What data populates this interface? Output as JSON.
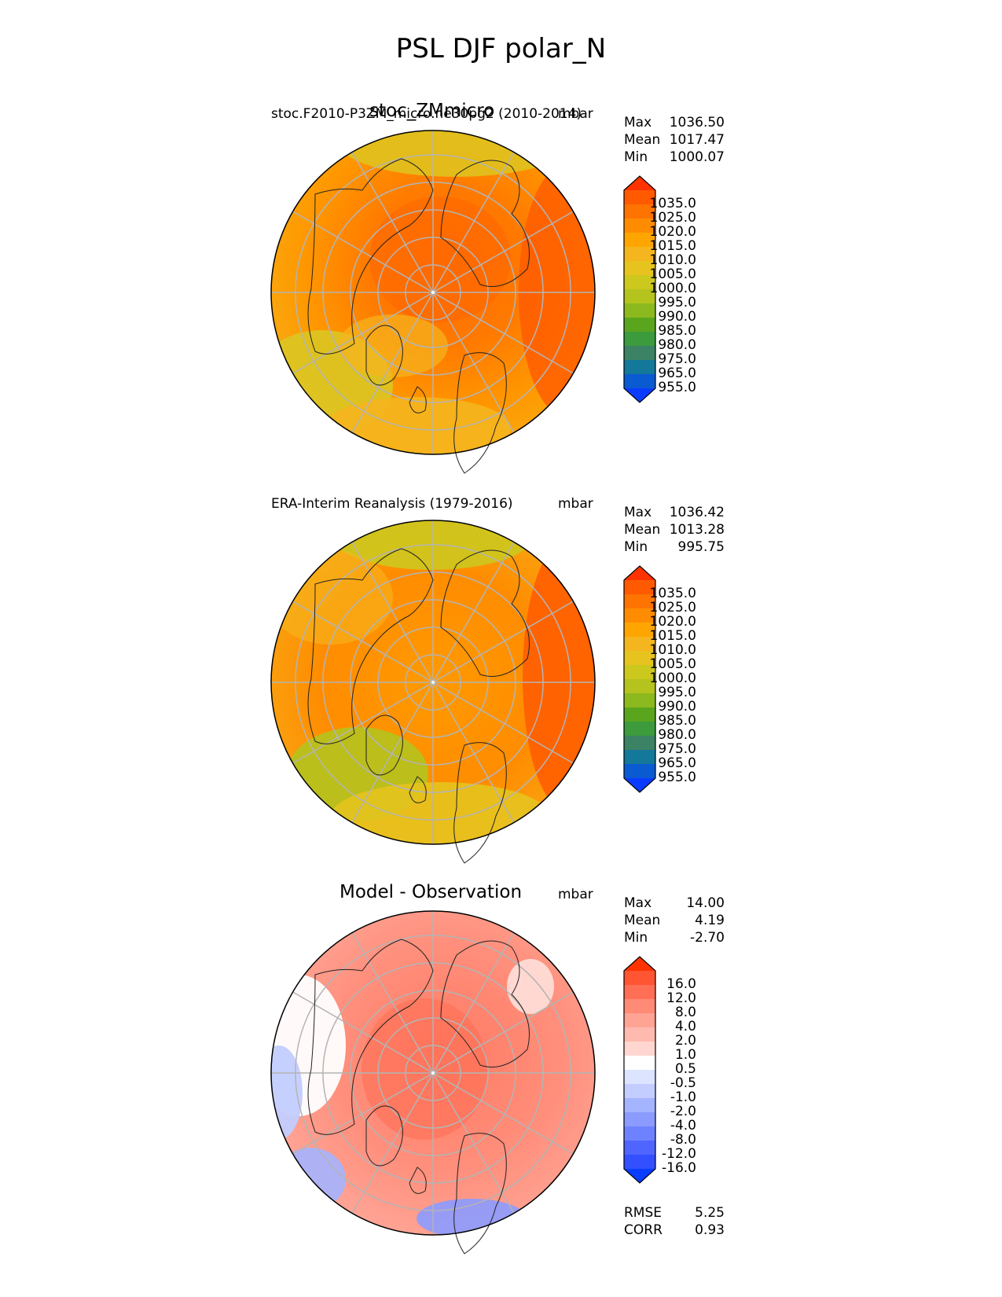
{
  "title": "PSL DJF polar_N",
  "panels": [
    {
      "id": "model",
      "title_left": "stoc.F2010-P3ZM_micro.ne30pg2 (2010-2014)",
      "title_center": "stoc_ZMmicro",
      "title_right": "mbar",
      "stats": [
        {
          "label": "Max",
          "value": "1036.50"
        },
        {
          "label": "Mean",
          "value": "1017.47"
        },
        {
          "label": "Min",
          "value": "1000.07"
        }
      ],
      "colorbar_labels": [
        "1035.0",
        "1025.0",
        "1020.0",
        "1015.0",
        "1010.0",
        "1005.0",
        "1000.0",
        "995.0",
        "990.0",
        "985.0",
        "980.0",
        "975.0",
        "965.0",
        "955.0"
      ],
      "colors": [
        "#ff3300",
        "#ff5a00",
        "#ff7300",
        "#ff8c00",
        "#ffa500",
        "#f5b51e",
        "#e6c31e",
        "#cdc81e",
        "#b4c31e",
        "#8cb91e",
        "#5aa51e",
        "#3c9b3c",
        "#3c8264",
        "#14789b",
        "#0a5ad2",
        "#0a3cff"
      ]
    },
    {
      "id": "obs",
      "title_left": "ERA-Interim Reanalysis (1979-2016)",
      "title_right": "mbar",
      "stats": [
        {
          "label": "Max",
          "value": "1036.42"
        },
        {
          "label": "Mean",
          "value": "1013.28"
        },
        {
          "label": "Min",
          "value": "995.75"
        }
      ],
      "colorbar_labels": [
        "1035.0",
        "1025.0",
        "1020.0",
        "1015.0",
        "1010.0",
        "1005.0",
        "1000.0",
        "995.0",
        "990.0",
        "985.0",
        "980.0",
        "975.0",
        "965.0",
        "955.0"
      ],
      "colors": [
        "#ff3300",
        "#ff5a00",
        "#ff7300",
        "#ff8c00",
        "#ffa500",
        "#f5b51e",
        "#e6c31e",
        "#cdc81e",
        "#b4c31e",
        "#8cb91e",
        "#5aa51e",
        "#3c9b3c",
        "#3c8264",
        "#14789b",
        "#0a5ad2",
        "#0a3cff"
      ]
    },
    {
      "id": "diff",
      "title_center": "Model - Observation",
      "title_right": "mbar",
      "stats": [
        {
          "label": "Max",
          "value": "14.00"
        },
        {
          "label": "Mean",
          "value": "4.19"
        },
        {
          "label": "Min",
          "value": "-2.70"
        }
      ],
      "colorbar_labels": [
        "16.0",
        "12.0",
        "8.0",
        "4.0",
        "2.0",
        "1.0",
        "0.5",
        "-0.5",
        "-1.0",
        "-2.0",
        "-4.0",
        "-8.0",
        "-12.0",
        "-16.0"
      ],
      "colors": [
        "#ff3300",
        "#ff5533",
        "#ff6f55",
        "#ff8a75",
        "#ffa394",
        "#ffbab0",
        "#ffd6d0",
        "#ffffff",
        "#dce4ff",
        "#c3cdff",
        "#a5b4ff",
        "#8c9bff",
        "#6e82ff",
        "#5064ff",
        "#3250ff",
        "#0a3cff"
      ],
      "metrics": [
        {
          "label": "RMSE",
          "value": "5.25"
        },
        {
          "label": "CORR",
          "value": "0.93"
        }
      ]
    }
  ],
  "chart_data": [
    {
      "type": "heatmap",
      "title": "stoc.F2010-P3ZM_micro.ne30pg2 (2010-2014)",
      "projection": "polar_N",
      "units": "mbar",
      "max": 1036.5,
      "mean": 1017.47,
      "min": 1000.07,
      "levels": [
        955,
        965,
        975,
        980,
        985,
        990,
        995,
        1000,
        1005,
        1010,
        1015,
        1020,
        1025,
        1035
      ]
    },
    {
      "type": "heatmap",
      "title": "ERA-Interim Reanalysis (1979-2016)",
      "projection": "polar_N",
      "units": "mbar",
      "max": 1036.42,
      "mean": 1013.28,
      "min": 995.75,
      "levels": [
        955,
        965,
        975,
        980,
        985,
        990,
        995,
        1000,
        1005,
        1010,
        1015,
        1020,
        1025,
        1035
      ]
    },
    {
      "type": "heatmap",
      "title": "Model - Observation",
      "projection": "polar_N",
      "units": "mbar",
      "max": 14.0,
      "mean": 4.19,
      "min": -2.7,
      "rmse": 5.25,
      "corr": 0.93,
      "levels": [
        -16,
        -12,
        -8,
        -4,
        -2,
        -1,
        -0.5,
        0.5,
        1,
        2,
        4,
        8,
        12,
        16
      ]
    }
  ]
}
